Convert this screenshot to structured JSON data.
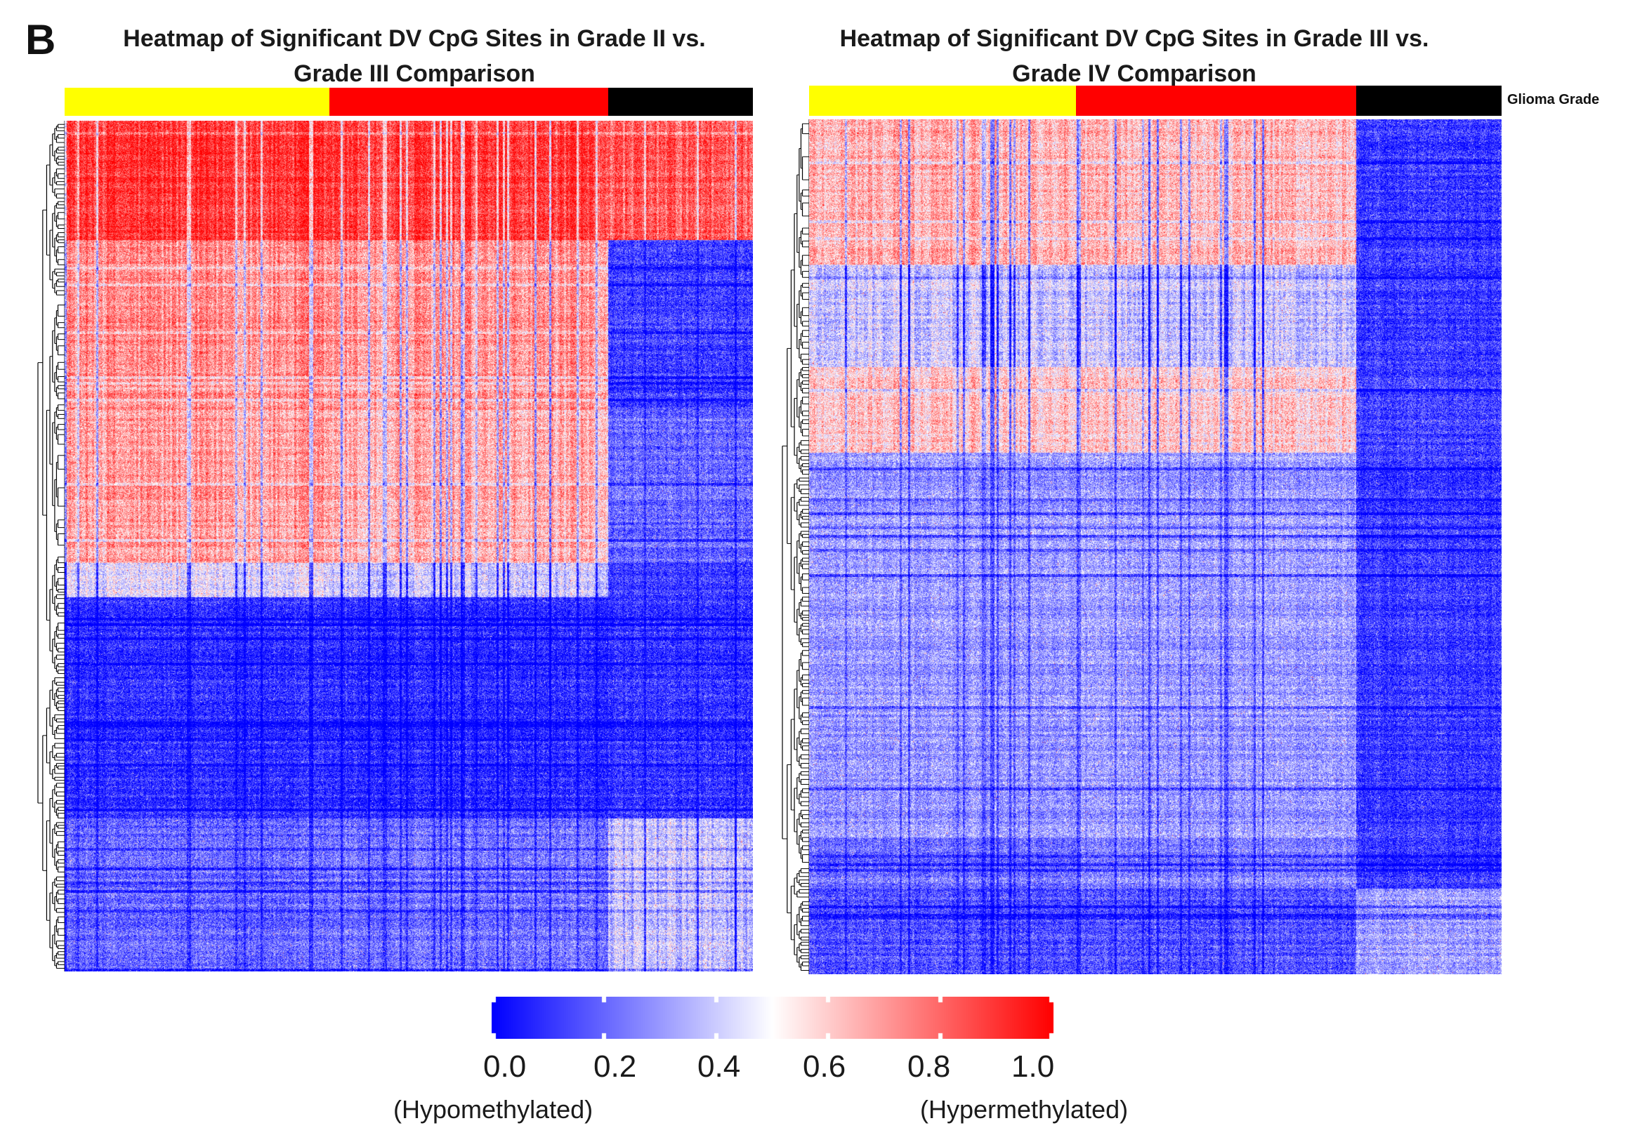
{
  "panel_label": "B",
  "legend": {
    "grade_label": "Glioma Grade",
    "colors": {
      "grade_ii": "#ffff00",
      "grade_iii": "#ff0000",
      "grade_iv": "#000000"
    }
  },
  "colorbar": {
    "ticks": [
      "0.0",
      "0.2",
      "0.4",
      "0.6",
      "0.8",
      "1.0"
    ],
    "low_label": "(Hypomethylated)",
    "high_label": "(Hypermethylated)",
    "low_color": "#0000ff",
    "mid_color": "#ffffff",
    "high_color": "#ff0000"
  },
  "chart_data": [
    {
      "type": "heatmap",
      "title": "Heatmap of Significant DV CpG Sites in Grade II vs. Grade III Comparison",
      "title_lines": [
        "Heatmap of Significant DV CpG Sites in Grade II vs.",
        "Grade III Comparison"
      ],
      "value_range": [
        0.0,
        1.0
      ],
      "column_groups": [
        {
          "grade": "II",
          "fraction": 0.385,
          "color": "#ffff00"
        },
        {
          "grade": "III",
          "fraction": 0.405,
          "color": "#ff0000"
        },
        {
          "grade": "IV",
          "fraction": 0.21,
          "color": "#000000"
        }
      ],
      "row_blocks": [
        {
          "fraction": 0.14,
          "levels": [
            0.9,
            0.88,
            0.82
          ]
        },
        {
          "fraction": 0.2,
          "levels": [
            0.72,
            0.7,
            0.12
          ]
        },
        {
          "fraction": 0.18,
          "levels": [
            0.68,
            0.64,
            0.2
          ]
        },
        {
          "fraction": 0.04,
          "levels": [
            0.45,
            0.4,
            0.12
          ]
        },
        {
          "fraction": 0.26,
          "levels": [
            0.08,
            0.07,
            0.09
          ]
        },
        {
          "fraction": 0.18,
          "levels": [
            0.2,
            0.22,
            0.38
          ]
        }
      ]
    },
    {
      "type": "heatmap",
      "title": "Heatmap of Significant DV CpG Sites in Grade III vs. Grade IV Comparison",
      "title_lines": [
        "Heatmap of Significant DV CpG Sites in Grade III vs.",
        "Grade IV Comparison"
      ],
      "value_range": [
        0.0,
        1.0
      ],
      "column_groups": [
        {
          "grade": "II",
          "fraction": 0.385,
          "color": "#ffff00"
        },
        {
          "grade": "III",
          "fraction": 0.405,
          "color": "#ff0000"
        },
        {
          "grade": "IV",
          "fraction": 0.21,
          "color": "#000000"
        }
      ],
      "row_blocks": [
        {
          "fraction": 0.17,
          "levels": [
            0.65,
            0.62,
            0.1
          ]
        },
        {
          "fraction": 0.12,
          "levels": [
            0.4,
            0.38,
            0.1
          ]
        },
        {
          "fraction": 0.1,
          "levels": [
            0.6,
            0.58,
            0.12
          ]
        },
        {
          "fraction": 0.45,
          "levels": [
            0.3,
            0.3,
            0.1
          ]
        },
        {
          "fraction": 0.06,
          "levels": [
            0.22,
            0.25,
            0.1
          ]
        },
        {
          "fraction": 0.1,
          "levels": [
            0.15,
            0.15,
            0.3
          ]
        }
      ]
    }
  ]
}
